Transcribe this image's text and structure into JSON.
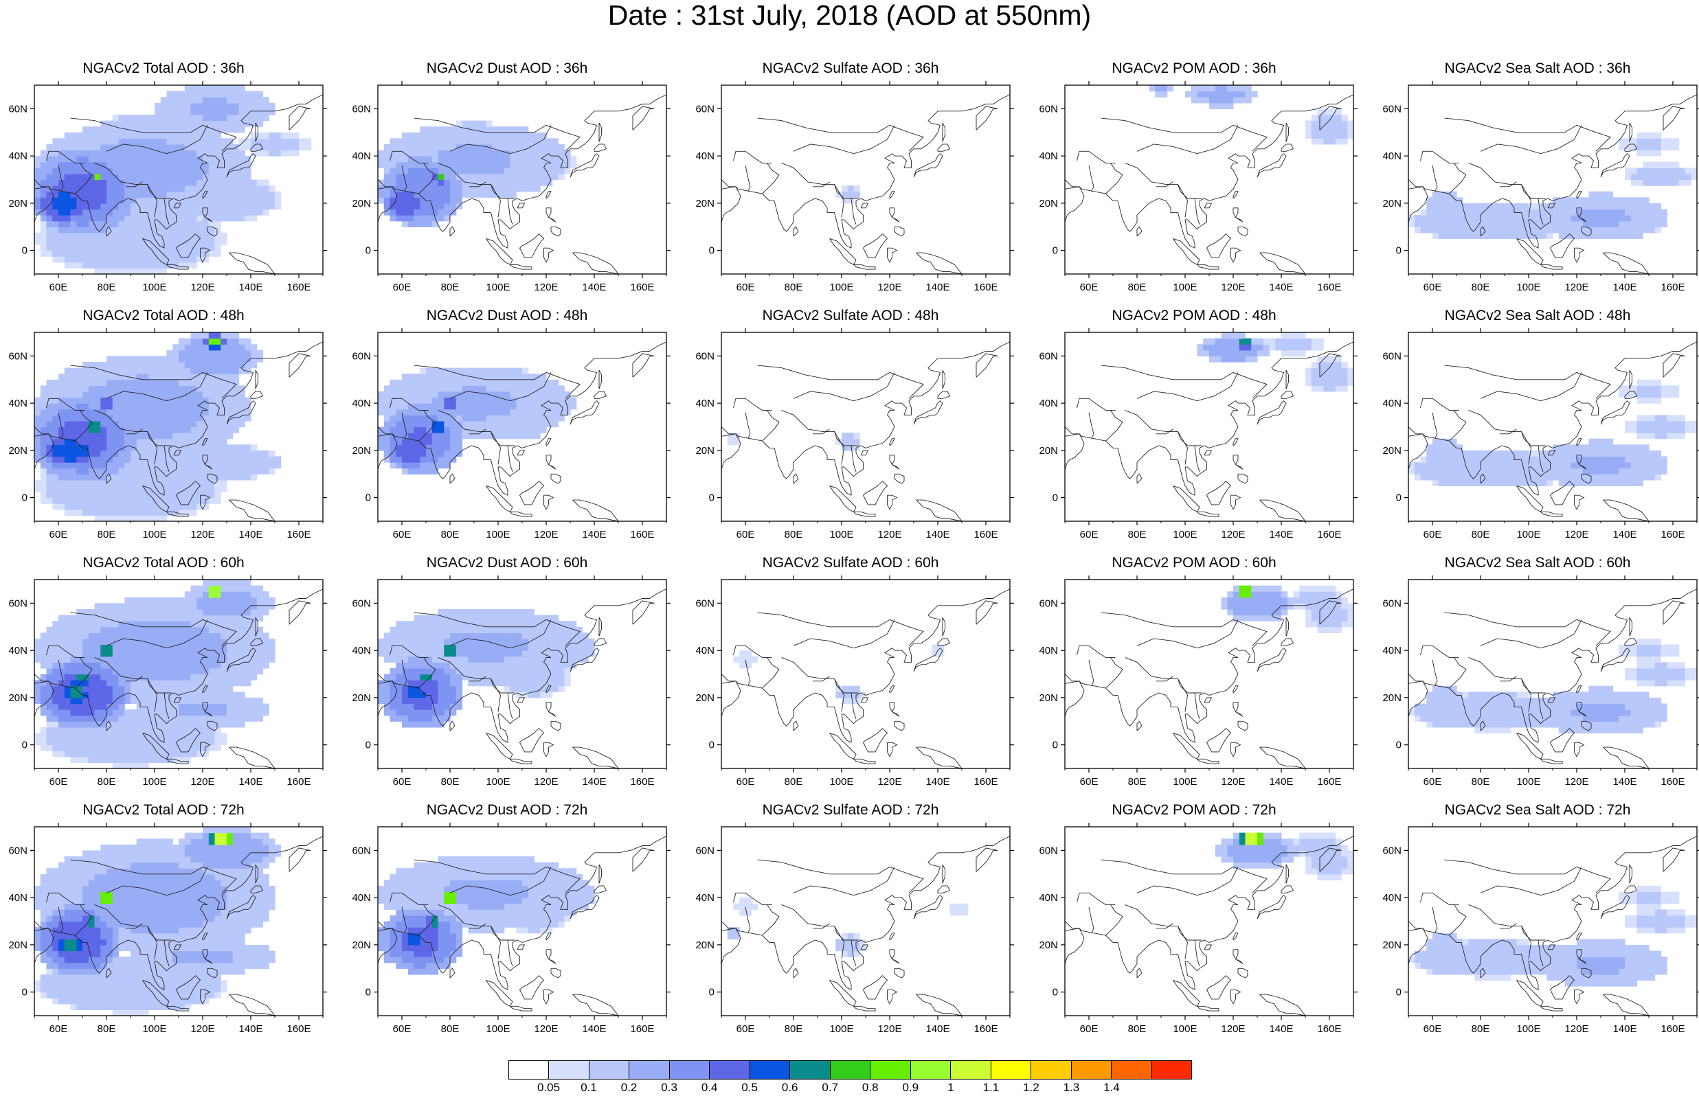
{
  "title": "Date : 31st July, 2018 (AOD at 550nm)",
  "panels": [
    [
      {
        "title": "NGACv2 Total AOD : 36h",
        "species": "total"
      },
      {
        "title": "NGACv2 Dust AOD : 36h",
        "species": "dust"
      },
      {
        "title": "NGACv2 Sulfate AOD : 36h",
        "species": "sulfate"
      },
      {
        "title": "NGACv2 POM AOD : 36h",
        "species": "pom"
      },
      {
        "title": "NGACv2 Sea Salt AOD : 36h",
        "species": "seasalt"
      }
    ],
    [
      {
        "title": "NGACv2 Total AOD : 48h",
        "species": "total"
      },
      {
        "title": "NGACv2 Dust AOD : 48h",
        "species": "dust"
      },
      {
        "title": "NGACv2 Sulfate AOD : 48h",
        "species": "sulfate"
      },
      {
        "title": "NGACv2 POM AOD : 48h",
        "species": "pom"
      },
      {
        "title": "NGACv2 Sea Salt AOD : 48h",
        "species": "seasalt"
      }
    ],
    [
      {
        "title": "NGACv2 Total AOD : 60h",
        "species": "total"
      },
      {
        "title": "NGACv2 Dust AOD : 60h",
        "species": "dust"
      },
      {
        "title": "NGACv2 Sulfate AOD : 60h",
        "species": "sulfate"
      },
      {
        "title": "NGACv2 POM AOD : 60h",
        "species": "pom"
      },
      {
        "title": "NGACv2 Sea Salt AOD : 60h",
        "species": "seasalt"
      }
    ],
    [
      {
        "title": "NGACv2 Total AOD : 72h",
        "species": "total"
      },
      {
        "title": "NGACv2 Dust AOD : 72h",
        "species": "dust"
      },
      {
        "title": "NGACv2 Sulfate AOD : 72h",
        "species": "sulfate"
      },
      {
        "title": "NGACv2 POM AOD : 72h",
        "species": "pom"
      },
      {
        "title": "NGACv2 Sea Salt  AOD : 72h",
        "species": "seasalt"
      }
    ]
  ],
  "map": {
    "lon_range": [
      50,
      170
    ],
    "lat_range": [
      -10,
      70
    ],
    "lon_ticks": [
      "60E",
      "80E",
      "100E",
      "120E",
      "140E",
      "160E"
    ],
    "lat_ticks": [
      "60N",
      "40N",
      "20N",
      "0"
    ]
  },
  "colorbar": {
    "colors": [
      "#ffffff",
      "#d6e0fc",
      "#b8c8fa",
      "#99adf7",
      "#7f93f2",
      "#5e67e8",
      "#0b56e0",
      "#0a8c8c",
      "#33cc1a",
      "#66ee00",
      "#99ff33",
      "#ccff33",
      "#ffff00",
      "#ffcc00",
      "#ff9900",
      "#ff6600",
      "#ff2b00"
    ],
    "labels": [
      "0.05",
      "0.1",
      "0.2",
      "0.3",
      "0.4",
      "0.5",
      "0.6",
      "0.7",
      "0.8",
      "0.9",
      "1",
      "1.1",
      "1.2",
      "1.3",
      "1.4"
    ]
  }
}
